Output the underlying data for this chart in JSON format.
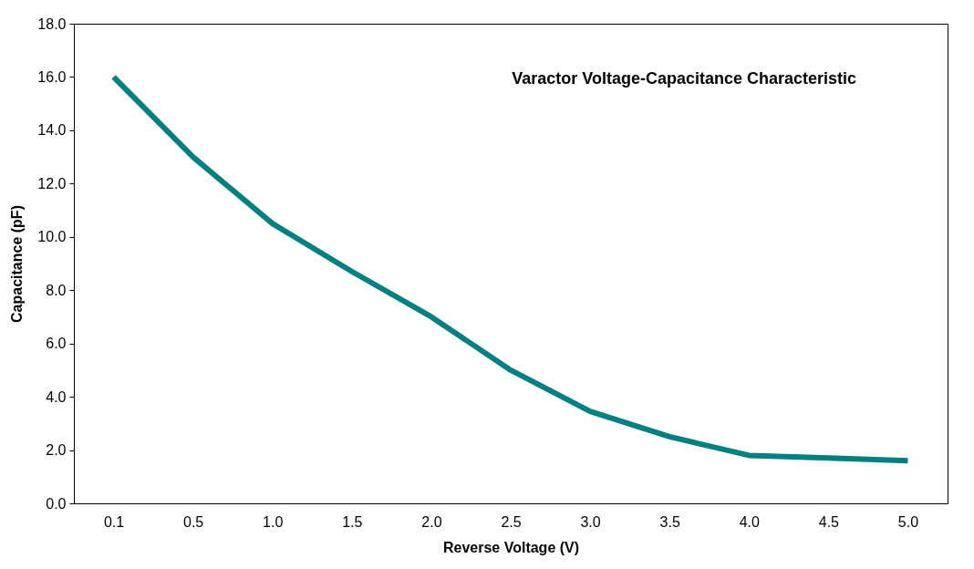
{
  "chart_data": {
    "type": "line",
    "title": "Varactor Voltage-Capacitance Characteristic",
    "xlabel": "Reverse Voltage (V)",
    "ylabel": "Capacitance (pF)",
    "categories": [
      "0.1",
      "0.5",
      "1.0",
      "1.5",
      "2.0",
      "2.5",
      "3.0",
      "3.5",
      "4.0",
      "4.5",
      "5.0"
    ],
    "series": [
      {
        "color": "#008080",
        "values": [
          16.0,
          13.0,
          10.5,
          8.7,
          7.0,
          5.0,
          3.45,
          2.5,
          1.8,
          1.7,
          1.6
        ]
      }
    ],
    "ylim": [
      0,
      18
    ],
    "yticks": [
      {
        "value": 0,
        "label": "0.0"
      },
      {
        "value": 2,
        "label": "2.0"
      },
      {
        "value": 4,
        "label": "4.0"
      },
      {
        "value": 6,
        "label": "6.0"
      },
      {
        "value": 8,
        "label": "8.0"
      },
      {
        "value": 10,
        "label": "10.0"
      },
      {
        "value": 12,
        "label": "12.0"
      },
      {
        "value": 14,
        "label": "14.0"
      },
      {
        "value": 16,
        "label": "16.0"
      },
      {
        "value": 18,
        "label": "18.0"
      }
    ],
    "grid": false,
    "marker": "none",
    "line_style": "solid"
  }
}
